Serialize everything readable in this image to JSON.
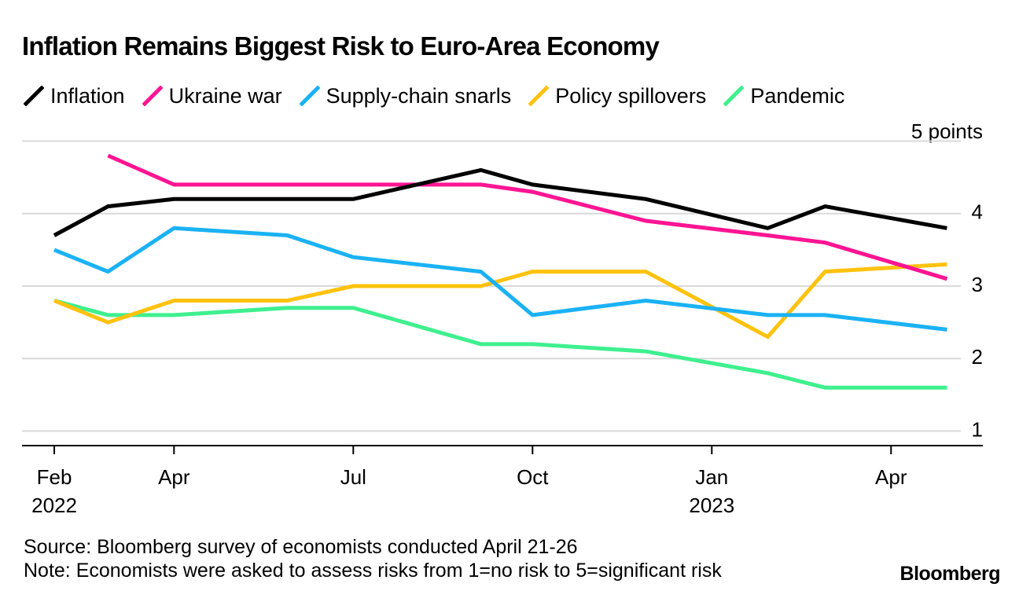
{
  "title": "Inflation Remains Biggest Risk to Euro-Area Economy",
  "unit_label": "5 points",
  "footer": {
    "source": "Source: Bloomberg survey of economists conducted April 21-26",
    "note": "Note: Economists were asked to assess risks from 1=no risk to 5=significant risk",
    "logo": "Bloomberg"
  },
  "chart_data": {
    "type": "line",
    "title": "Inflation Remains Biggest Risk to Euro-Area Economy",
    "xlabel": "",
    "ylabel": "5 points",
    "ylim": [
      0.8,
      4.8
    ],
    "x_domain": [
      2022.08,
      2023.42
    ],
    "grid": true,
    "legend_position": "top",
    "y_ticks": [
      {
        "value": 5,
        "label": ""
      },
      {
        "value": 4,
        "label": "4"
      },
      {
        "value": 3,
        "label": "3"
      },
      {
        "value": 2,
        "label": "2"
      },
      {
        "value": 1,
        "label": "1"
      }
    ],
    "x_ticks": [
      {
        "x": 2022.125,
        "label": "Feb",
        "year": "2022"
      },
      {
        "x": 2022.292,
        "label": "Apr",
        "year": ""
      },
      {
        "x": 2022.542,
        "label": "Jul",
        "year": ""
      },
      {
        "x": 2022.792,
        "label": "Oct",
        "year": ""
      },
      {
        "x": 2023.042,
        "label": "Jan",
        "year": "2023"
      },
      {
        "x": 2023.292,
        "label": "Apr",
        "year": ""
      }
    ],
    "series": [
      {
        "name": "Inflation",
        "color": "#000000",
        "x": [
          2022.125,
          2022.2,
          2022.292,
          2022.542,
          2022.72,
          2022.792,
          2022.95,
          2023.12,
          2023.2,
          2023.37
        ],
        "values": [
          3.7,
          4.1,
          4.2,
          4.2,
          4.6,
          4.4,
          4.2,
          3.8,
          4.1,
          3.8
        ]
      },
      {
        "name": "Ukraine war",
        "color": "#ff1493",
        "x": [
          2022.2,
          2022.292,
          2022.542,
          2022.72,
          2022.792,
          2022.95,
          2023.12,
          2023.2,
          2023.37
        ],
        "values": [
          4.8,
          4.4,
          4.4,
          4.4,
          4.3,
          3.9,
          3.7,
          3.6,
          3.1
        ]
      },
      {
        "name": "Supply-chain snarls",
        "color": "#1ab2f5",
        "x": [
          2022.125,
          2022.2,
          2022.292,
          2022.45,
          2022.542,
          2022.72,
          2022.792,
          2022.95,
          2023.12,
          2023.2,
          2023.37
        ],
        "values": [
          3.5,
          3.2,
          3.8,
          3.7,
          3.4,
          3.2,
          2.6,
          2.8,
          2.6,
          2.6,
          2.4
        ]
      },
      {
        "name": "Policy spillovers",
        "color": "#ffc20e",
        "x": [
          2022.125,
          2022.2,
          2022.292,
          2022.45,
          2022.542,
          2022.72,
          2022.792,
          2022.95,
          2023.12,
          2023.2,
          2023.37
        ],
        "values": [
          2.8,
          2.5,
          2.8,
          2.8,
          3.0,
          3.0,
          3.2,
          3.2,
          2.3,
          3.2,
          3.3
        ]
      },
      {
        "name": "Pandemic",
        "color": "#3ef08e",
        "x": [
          2022.125,
          2022.2,
          2022.292,
          2022.45,
          2022.542,
          2022.72,
          2022.792,
          2022.95,
          2023.12,
          2023.2,
          2023.37
        ],
        "values": [
          2.8,
          2.6,
          2.6,
          2.7,
          2.7,
          2.2,
          2.2,
          2.1,
          1.8,
          1.6,
          1.6
        ]
      }
    ]
  }
}
